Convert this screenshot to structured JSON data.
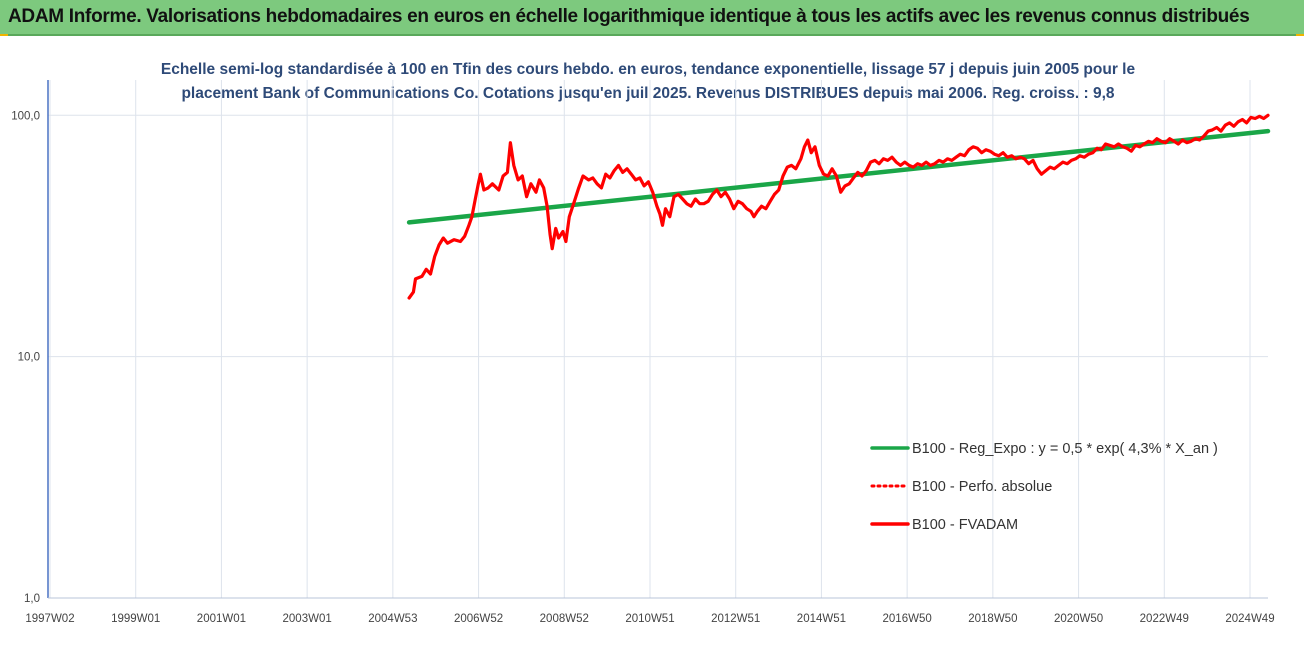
{
  "header": {
    "title": "ADAM Informe. Valorisations hebdomadaires en euros en échelle logarithmique identique à tous les actifs avec les revenus connus distribués",
    "background": "#7dc97e"
  },
  "chart_data": {
    "type": "line",
    "title_lines": [
      "Echelle semi-log standardisée à 100 en Tfin des cours hebdo. en euros, tendance exponentielle, lissage 57 j depuis juin 2005 pour le",
      "placement Bank of Communications Co. Cotations jusqu'en juil 2025. Revenus DISTRIBUES depuis mai 2006. Reg. croiss. : 9,8"
    ],
    "y_scale": "log",
    "ylim": [
      1,
      140
    ],
    "y_ticks": [
      {
        "value": 1,
        "label": "1,0"
      },
      {
        "value": 10,
        "label": "10,0"
      },
      {
        "value": 100,
        "label": "100,0"
      }
    ],
    "x_ticks": [
      "1997W02",
      "1999W01",
      "2001W01",
      "2003W01",
      "2004W53",
      "2006W52",
      "2008W52",
      "2010W51",
      "2012W51",
      "2014W51",
      "2016W50",
      "2018W50",
      "2020W50",
      "2022W49",
      "2024W49"
    ],
    "x_range_years": [
      1997.0,
      2025.55
    ],
    "grid": true,
    "legend_position": "bottom-right",
    "series": [
      {
        "name": "B100 - Reg_Expo : y = 0,5 * exp( 4,3% *  X_an )",
        "style": "solid",
        "color": "#1aa648",
        "points": [
          [
            2005.45,
            36.0
          ],
          [
            2025.55,
            86.0
          ]
        ]
      },
      {
        "name": "B100 - Perfo. absolue",
        "style": "dotted",
        "color": "#ff0000",
        "points": []
      },
      {
        "name": "B100 - FVADAM",
        "style": "solid",
        "color": "#ff0000",
        "points": [
          [
            2005.45,
            17.5
          ],
          [
            2005.55,
            18.5
          ],
          [
            2005.6,
            21
          ],
          [
            2005.75,
            21.5
          ],
          [
            2005.85,
            23
          ],
          [
            2005.95,
            22
          ],
          [
            2006.05,
            26
          ],
          [
            2006.15,
            29
          ],
          [
            2006.25,
            31
          ],
          [
            2006.35,
            29.5
          ],
          [
            2006.5,
            30.5
          ],
          [
            2006.65,
            30
          ],
          [
            2006.75,
            31.5
          ],
          [
            2006.85,
            35
          ],
          [
            2006.92,
            38
          ],
          [
            2007.0,
            45
          ],
          [
            2007.07,
            52
          ],
          [
            2007.12,
            57
          ],
          [
            2007.2,
            49
          ],
          [
            2007.3,
            50
          ],
          [
            2007.4,
            52
          ],
          [
            2007.55,
            49
          ],
          [
            2007.65,
            56
          ],
          [
            2007.75,
            58
          ],
          [
            2007.82,
            77
          ],
          [
            2007.9,
            62
          ],
          [
            2008.0,
            54
          ],
          [
            2008.1,
            56
          ],
          [
            2008.2,
            46
          ],
          [
            2008.3,
            52
          ],
          [
            2008.42,
            48
          ],
          [
            2008.5,
            54
          ],
          [
            2008.6,
            50
          ],
          [
            2008.68,
            42
          ],
          [
            2008.75,
            32
          ],
          [
            2008.8,
            28
          ],
          [
            2008.88,
            34
          ],
          [
            2008.95,
            31
          ],
          [
            2009.05,
            33
          ],
          [
            2009.12,
            30
          ],
          [
            2009.2,
            38
          ],
          [
            2009.3,
            43
          ],
          [
            2009.42,
            50
          ],
          [
            2009.52,
            56
          ],
          [
            2009.65,
            54
          ],
          [
            2009.75,
            55
          ],
          [
            2009.85,
            52
          ],
          [
            2009.95,
            50
          ],
          [
            2010.05,
            57
          ],
          [
            2010.15,
            55
          ],
          [
            2010.25,
            59
          ],
          [
            2010.35,
            62
          ],
          [
            2010.45,
            58
          ],
          [
            2010.55,
            60
          ],
          [
            2010.65,
            57
          ],
          [
            2010.75,
            54
          ],
          [
            2010.85,
            55
          ],
          [
            2010.95,
            51
          ],
          [
            2011.05,
            53
          ],
          [
            2011.15,
            48
          ],
          [
            2011.25,
            42
          ],
          [
            2011.32,
            39
          ],
          [
            2011.38,
            35
          ],
          [
            2011.45,
            41
          ],
          [
            2011.55,
            38
          ],
          [
            2011.65,
            46
          ],
          [
            2011.75,
            47
          ],
          [
            2011.85,
            45
          ],
          [
            2011.95,
            43
          ],
          [
            2012.05,
            42
          ],
          [
            2012.15,
            45
          ],
          [
            2012.25,
            43
          ],
          [
            2012.35,
            43
          ],
          [
            2012.45,
            44
          ],
          [
            2012.55,
            47
          ],
          [
            2012.65,
            49
          ],
          [
            2012.75,
            46
          ],
          [
            2012.85,
            48
          ],
          [
            2012.95,
            45
          ],
          [
            2013.05,
            41
          ],
          [
            2013.15,
            44
          ],
          [
            2013.25,
            43
          ],
          [
            2013.35,
            41
          ],
          [
            2013.45,
            40
          ],
          [
            2013.52,
            38
          ],
          [
            2013.6,
            40
          ],
          [
            2013.7,
            42
          ],
          [
            2013.8,
            41
          ],
          [
            2013.9,
            44
          ],
          [
            2014.0,
            47
          ],
          [
            2014.1,
            49
          ],
          [
            2014.2,
            56
          ],
          [
            2014.3,
            61
          ],
          [
            2014.4,
            62
          ],
          [
            2014.5,
            60
          ],
          [
            2014.62,
            66
          ],
          [
            2014.7,
            74
          ],
          [
            2014.78,
            79
          ],
          [
            2014.86,
            70
          ],
          [
            2014.95,
            74
          ],
          [
            2015.05,
            62
          ],
          [
            2015.15,
            57
          ],
          [
            2015.25,
            56
          ],
          [
            2015.35,
            60
          ],
          [
            2015.45,
            56
          ],
          [
            2015.55,
            48
          ],
          [
            2015.65,
            51
          ],
          [
            2015.75,
            52
          ],
          [
            2015.85,
            55
          ],
          [
            2015.95,
            58
          ],
          [
            2016.05,
            56
          ],
          [
            2016.15,
            59
          ],
          [
            2016.25,
            64
          ],
          [
            2016.35,
            65
          ],
          [
            2016.45,
            63
          ],
          [
            2016.55,
            66
          ],
          [
            2016.65,
            65
          ],
          [
            2016.75,
            67
          ],
          [
            2016.85,
            64
          ],
          [
            2016.95,
            62
          ],
          [
            2017.05,
            64
          ],
          [
            2017.15,
            62
          ],
          [
            2017.25,
            61
          ],
          [
            2017.35,
            63
          ],
          [
            2017.45,
            62
          ],
          [
            2017.55,
            64
          ],
          [
            2017.65,
            62
          ],
          [
            2017.75,
            63
          ],
          [
            2017.85,
            65
          ],
          [
            2017.95,
            64
          ],
          [
            2018.05,
            66
          ],
          [
            2018.15,
            65
          ],
          [
            2018.25,
            67
          ],
          [
            2018.35,
            69
          ],
          [
            2018.45,
            68
          ],
          [
            2018.55,
            72
          ],
          [
            2018.65,
            74
          ],
          [
            2018.75,
            73
          ],
          [
            2018.85,
            70
          ],
          [
            2018.95,
            72
          ],
          [
            2019.05,
            71
          ],
          [
            2019.15,
            69
          ],
          [
            2019.25,
            68
          ],
          [
            2019.35,
            70
          ],
          [
            2019.45,
            67
          ],
          [
            2019.55,
            68
          ],
          [
            2019.65,
            66
          ],
          [
            2019.75,
            67
          ],
          [
            2019.85,
            66
          ],
          [
            2019.95,
            63
          ],
          [
            2020.05,
            65
          ],
          [
            2020.15,
            60
          ],
          [
            2020.25,
            57
          ],
          [
            2020.35,
            59
          ],
          [
            2020.45,
            61
          ],
          [
            2020.55,
            60
          ],
          [
            2020.65,
            62
          ],
          [
            2020.75,
            64
          ],
          [
            2020.85,
            63
          ],
          [
            2020.95,
            65
          ],
          [
            2021.05,
            66
          ],
          [
            2021.15,
            68
          ],
          [
            2021.25,
            67
          ],
          [
            2021.35,
            69
          ],
          [
            2021.45,
            70
          ],
          [
            2021.55,
            73
          ],
          [
            2021.65,
            72
          ],
          [
            2021.75,
            76
          ],
          [
            2021.85,
            75
          ],
          [
            2021.95,
            74
          ],
          [
            2022.05,
            76
          ],
          [
            2022.15,
            74
          ],
          [
            2022.25,
            73
          ],
          [
            2022.35,
            71
          ],
          [
            2022.45,
            75
          ],
          [
            2022.55,
            74
          ],
          [
            2022.65,
            76
          ],
          [
            2022.75,
            78
          ],
          [
            2022.85,
            77
          ],
          [
            2022.95,
            80
          ],
          [
            2023.05,
            78
          ],
          [
            2023.15,
            77
          ],
          [
            2023.25,
            80
          ],
          [
            2023.35,
            78
          ],
          [
            2023.45,
            76
          ],
          [
            2023.55,
            79
          ],
          [
            2023.65,
            77
          ],
          [
            2023.75,
            78
          ],
          [
            2023.85,
            80
          ],
          [
            2023.95,
            79
          ],
          [
            2024.05,
            82
          ],
          [
            2024.15,
            86
          ],
          [
            2024.25,
            87
          ],
          [
            2024.35,
            89
          ],
          [
            2024.45,
            86
          ],
          [
            2024.55,
            91
          ],
          [
            2024.65,
            93
          ],
          [
            2024.75,
            90
          ],
          [
            2024.85,
            94
          ],
          [
            2024.95,
            96
          ],
          [
            2025.05,
            93
          ],
          [
            2025.15,
            98
          ],
          [
            2025.25,
            97
          ],
          [
            2025.35,
            99
          ],
          [
            2025.45,
            97
          ],
          [
            2025.55,
            100
          ]
        ]
      }
    ]
  }
}
